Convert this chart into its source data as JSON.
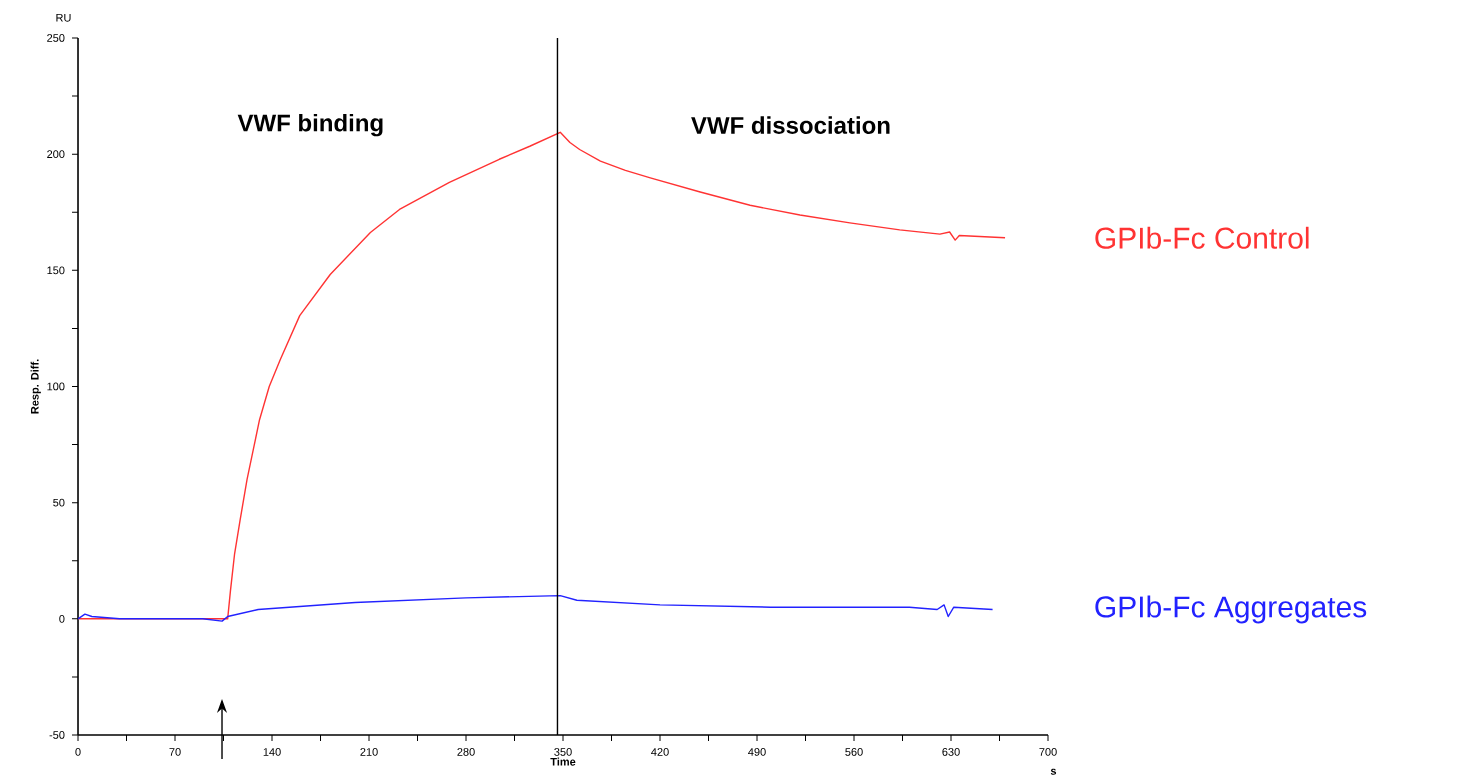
{
  "chart_data": {
    "type": "line",
    "xlabel": "Time",
    "ylabel": "Resp. Diff.",
    "annotations": [
      "RU",
      "s",
      "VWF binding",
      "VWF dissociation"
    ],
    "xlim": [
      0,
      700
    ],
    "ylim": [
      -50,
      250
    ],
    "xticks": [
      0,
      {
        "value": 35,
        "label": null
      },
      70,
      {
        "value": 105,
        "label": null
      },
      140,
      {
        "value": 175,
        "label": null
      },
      210,
      {
        "value": 245,
        "label": null
      },
      280,
      {
        "value": 315,
        "label": null
      },
      350,
      {
        "value": 385,
        "label": null
      },
      420,
      {
        "value": 455,
        "label": null
      },
      490,
      {
        "value": 525,
        "label": null
      },
      560,
      {
        "value": 595,
        "label": null
      },
      630,
      {
        "value": 665,
        "label": null
      },
      700
    ],
    "yticks": [
      -50,
      {
        "value": -25,
        "label": null
      },
      0,
      {
        "value": 25,
        "label": null
      },
      50,
      {
        "value": 75,
        "label": null
      },
      100,
      {
        "value": 125,
        "label": null
      },
      150,
      {
        "value": 175,
        "label": null
      },
      200,
      {
        "value": 225,
        "label": null
      },
      250
    ],
    "ref_lines": [
      {
        "axis": "x",
        "value": 346,
        "color": "#000000"
      }
    ],
    "marker": "none",
    "series": [
      {
        "name": "GPIb-Fc Control",
        "color": "#ff3333",
        "x": [
          0,
          30,
          60,
          90,
          108,
          110,
          113,
          117,
          122,
          131,
          138,
          146,
          160,
          182,
          211,
          232,
          268,
          304,
          326,
          348,
          355,
          362,
          377,
          395,
          413,
          449,
          485,
          521,
          557,
          593,
          622,
          629,
          633,
          636,
          669
        ],
        "values": [
          0,
          0,
          0,
          0,
          0,
          12,
          28,
          42.6,
          60,
          85.7,
          100,
          111.6,
          130.5,
          148.2,
          166.3,
          176.2,
          187.9,
          197.8,
          203.4,
          209.4,
          205,
          202,
          197,
          193,
          189.8,
          183.7,
          178,
          173.8,
          170.4,
          167.4,
          165.6,
          166.5,
          163,
          165,
          164
        ]
      },
      {
        "name": "GPIb-Fc Aggregates",
        "color": "#2222ff",
        "x": [
          0,
          5,
          10,
          30,
          60,
          90,
          104,
          108,
          130,
          200,
          280,
          348,
          360,
          420,
          500,
          600,
          620,
          625,
          628,
          632,
          660
        ],
        "values": [
          0,
          2,
          1,
          0,
          0,
          0,
          -1,
          1,
          4,
          7,
          9,
          10,
          8,
          6,
          5,
          5,
          4,
          6,
          1,
          5,
          4
        ]
      }
    ]
  }
}
